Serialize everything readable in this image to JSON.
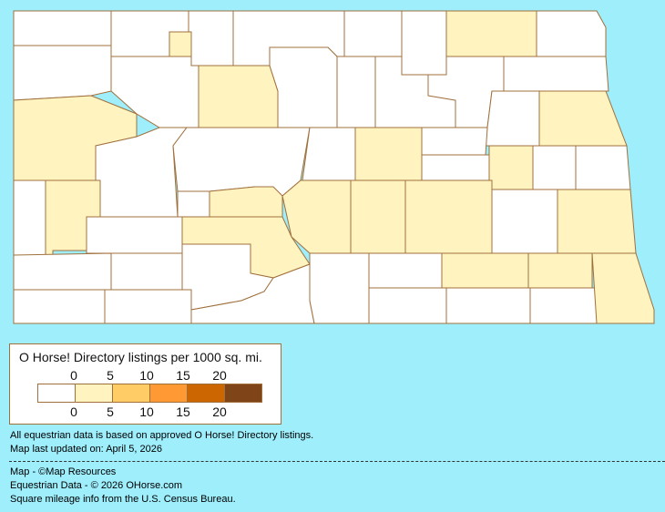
{
  "legend": {
    "title": "O Horse! Directory listings per 1000 sq. mi.",
    "ticks_top": [
      "0",
      "5",
      "10",
      "15",
      "20"
    ],
    "ticks_bottom": [
      "0",
      "5",
      "10",
      "15",
      "20"
    ],
    "colors": [
      "#FFFFFF",
      "#FFF3C0",
      "#FFCC66",
      "#FF9933",
      "#CC6600",
      "#7F4519"
    ]
  },
  "map_colors": {
    "background": "#9EEEFC",
    "border": "#A0703C"
  },
  "notes": {
    "data_basis": "All equestrian data is based on approved O Horse! Directory listings.",
    "updated": "Map last updated on: April 5, 2026",
    "map_credit": "Map - ©Map Resources",
    "data_credit": "Equestrian Data - © 2026 OHorse.com",
    "census_credit": "Square mileage info from the U.S. Census Bureau."
  }
}
